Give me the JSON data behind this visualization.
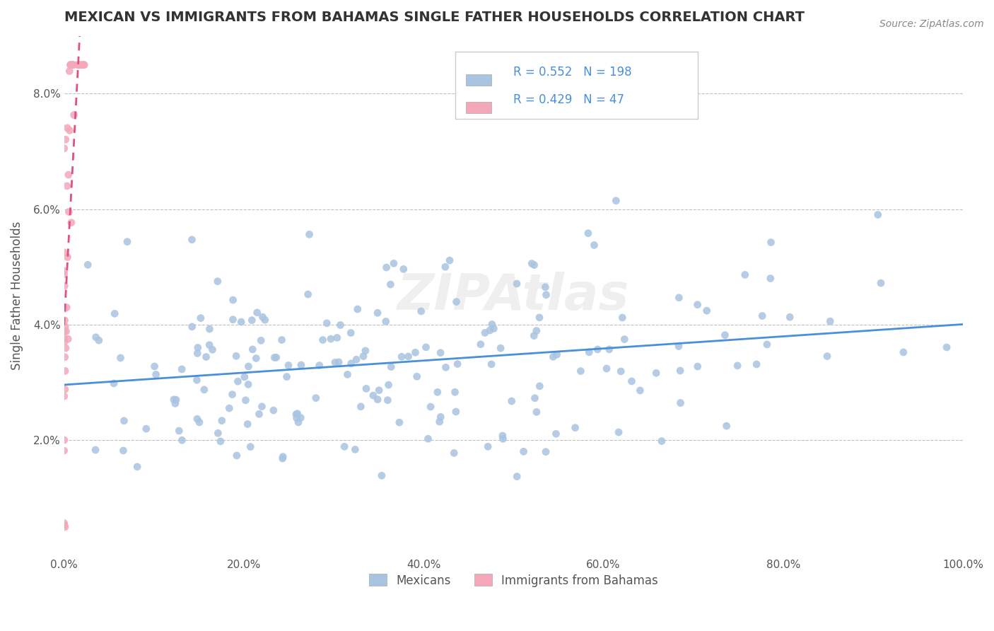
{
  "title": "MEXICAN VS IMMIGRANTS FROM BAHAMAS SINGLE FATHER HOUSEHOLDS CORRELATION CHART",
  "source": "Source: ZipAtlas.com",
  "ylabel": "Single Father Households",
  "xlabel": "",
  "legend_labels": [
    "Mexicans",
    "Immigrants from Bahamas"
  ],
  "blue_R": 0.552,
  "blue_N": 198,
  "pink_R": 0.429,
  "pink_N": 47,
  "blue_color": "#a8c4e0",
  "pink_color": "#f4a7b9",
  "blue_line_color": "#4a90d9",
  "pink_line_color": "#e05080",
  "blue_dot_color": "#a8c4e0",
  "pink_dot_color": "#f4a7b9",
  "background_color": "#ffffff",
  "watermark": "ZIPAtlas",
  "xlim": [
    0,
    1.0
  ],
  "ylim": [
    0,
    0.09
  ],
  "xtick_labels": [
    "0.0%",
    "20.0%",
    "40.0%",
    "60.0%",
    "80.0%",
    "100.0%"
  ],
  "xtick_vals": [
    0.0,
    0.2,
    0.4,
    0.6,
    0.8,
    1.0
  ],
  "ytick_labels": [
    "2.0%",
    "4.0%",
    "6.0%",
    "8.0%"
  ],
  "ytick_vals": [
    0.02,
    0.04,
    0.06,
    0.08
  ]
}
